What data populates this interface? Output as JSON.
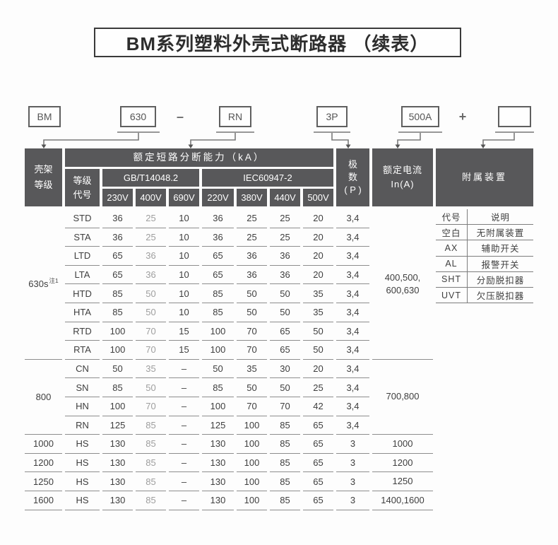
{
  "page": {
    "title": "BM系列塑料外壳式断路器 （续表）"
  },
  "model_diagram": {
    "boxes": [
      "BM",
      "630",
      "RN",
      "3P",
      "500A",
      ""
    ],
    "separators": [
      "–",
      "+"
    ]
  },
  "table": {
    "header": {
      "frame_grade": [
        "壳架",
        "等级"
      ],
      "breaking_capacity": "额定短路分断能力（kA）",
      "grade_code": [
        "等级",
        "代号"
      ],
      "gb_standard": "GB/T14048.2",
      "iec_standard": "IEC60947-2",
      "voltages_gb": [
        "230V",
        "400V",
        "690V"
      ],
      "voltages_iec": [
        "220V",
        "380V",
        "440V",
        "500V"
      ],
      "poles": [
        "极",
        "数",
        "( P )"
      ],
      "rated_current": [
        "额定电流",
        "In(A)"
      ],
      "accessories": "附属装置"
    },
    "groups": [
      {
        "frame": "630s",
        "frame_note": "注1",
        "rated_current": [
          "400,500,",
          "600,630"
        ],
        "rows": [
          {
            "code": "STD",
            "values": [
              "36",
              "25",
              "10",
              "36",
              "25",
              "25",
              "20"
            ],
            "poles": "3,4"
          },
          {
            "code": "STA",
            "values": [
              "36",
              "25",
              "10",
              "36",
              "25",
              "25",
              "20"
            ],
            "poles": "3,4"
          },
          {
            "code": "LTD",
            "values": [
              "65",
              "36",
              "10",
              "65",
              "36",
              "36",
              "20"
            ],
            "poles": "3,4"
          },
          {
            "code": "LTA",
            "values": [
              "65",
              "36",
              "10",
              "65",
              "36",
              "36",
              "20"
            ],
            "poles": "3,4"
          },
          {
            "code": "HTD",
            "values": [
              "85",
              "50",
              "10",
              "85",
              "50",
              "50",
              "35"
            ],
            "poles": "3,4"
          },
          {
            "code": "HTA",
            "values": [
              "85",
              "50",
              "10",
              "85",
              "50",
              "50",
              "35"
            ],
            "poles": "3,4"
          },
          {
            "code": "RTD",
            "values": [
              "100",
              "70",
              "15",
              "100",
              "70",
              "65",
              "50"
            ],
            "poles": "3,4"
          },
          {
            "code": "RTA",
            "values": [
              "100",
              "70",
              "15",
              "100",
              "70",
              "65",
              "50"
            ],
            "poles": "3,4"
          }
        ]
      },
      {
        "frame": "800",
        "frame_note": "",
        "rated_current": [
          "700,800"
        ],
        "rows": [
          {
            "code": "CN",
            "values": [
              "50",
              "35",
              "–",
              "50",
              "35",
              "30",
              "20"
            ],
            "poles": "3,4"
          },
          {
            "code": "SN",
            "values": [
              "85",
              "50",
              "–",
              "85",
              "50",
              "50",
              "25"
            ],
            "poles": "3,4"
          },
          {
            "code": "HN",
            "values": [
              "100",
              "70",
              "–",
              "100",
              "70",
              "70",
              "42"
            ],
            "poles": "3,4"
          },
          {
            "code": "RN",
            "values": [
              "125",
              "85",
              "–",
              "125",
              "100",
              "85",
              "65"
            ],
            "poles": "3,4"
          }
        ]
      },
      {
        "frame": "1000",
        "frame_note": "",
        "rated_current": [
          "1000"
        ],
        "rows": [
          {
            "code": "HS",
            "values": [
              "130",
              "85",
              "–",
              "130",
              "100",
              "85",
              "65"
            ],
            "poles": "3"
          }
        ]
      },
      {
        "frame": "1200",
        "frame_note": "",
        "rated_current": [
          "1200"
        ],
        "rows": [
          {
            "code": "HS",
            "values": [
              "130",
              "85",
              "–",
              "130",
              "100",
              "85",
              "65"
            ],
            "poles": "3"
          }
        ]
      },
      {
        "frame": "1250",
        "frame_note": "",
        "rated_current": [
          "1250"
        ],
        "rows": [
          {
            "code": "HS",
            "values": [
              "130",
              "85",
              "–",
              "130",
              "100",
              "85",
              "65"
            ],
            "poles": "3"
          }
        ]
      },
      {
        "frame": "1600",
        "frame_note": "",
        "rated_current": [
          "1400,1600"
        ],
        "rows": [
          {
            "code": "HS",
            "values": [
              "130",
              "85",
              "–",
              "130",
              "100",
              "85",
              "65"
            ],
            "poles": "3"
          }
        ]
      }
    ],
    "accessory_table": {
      "headers": [
        "代号",
        "说明"
      ],
      "rows": [
        [
          "空白",
          "无附属装置"
        ],
        [
          "AX",
          "辅助开关"
        ],
        [
          "AL",
          "报警开关"
        ],
        [
          "SHT",
          "分励脱扣器"
        ],
        [
          "UVT",
          "欠压脱扣器"
        ]
      ]
    }
  },
  "colors": {
    "header_bg": "#58585a",
    "text": "#3e3e3e",
    "muted_value": "#9e9e9e",
    "line": "#8d8d8d"
  }
}
